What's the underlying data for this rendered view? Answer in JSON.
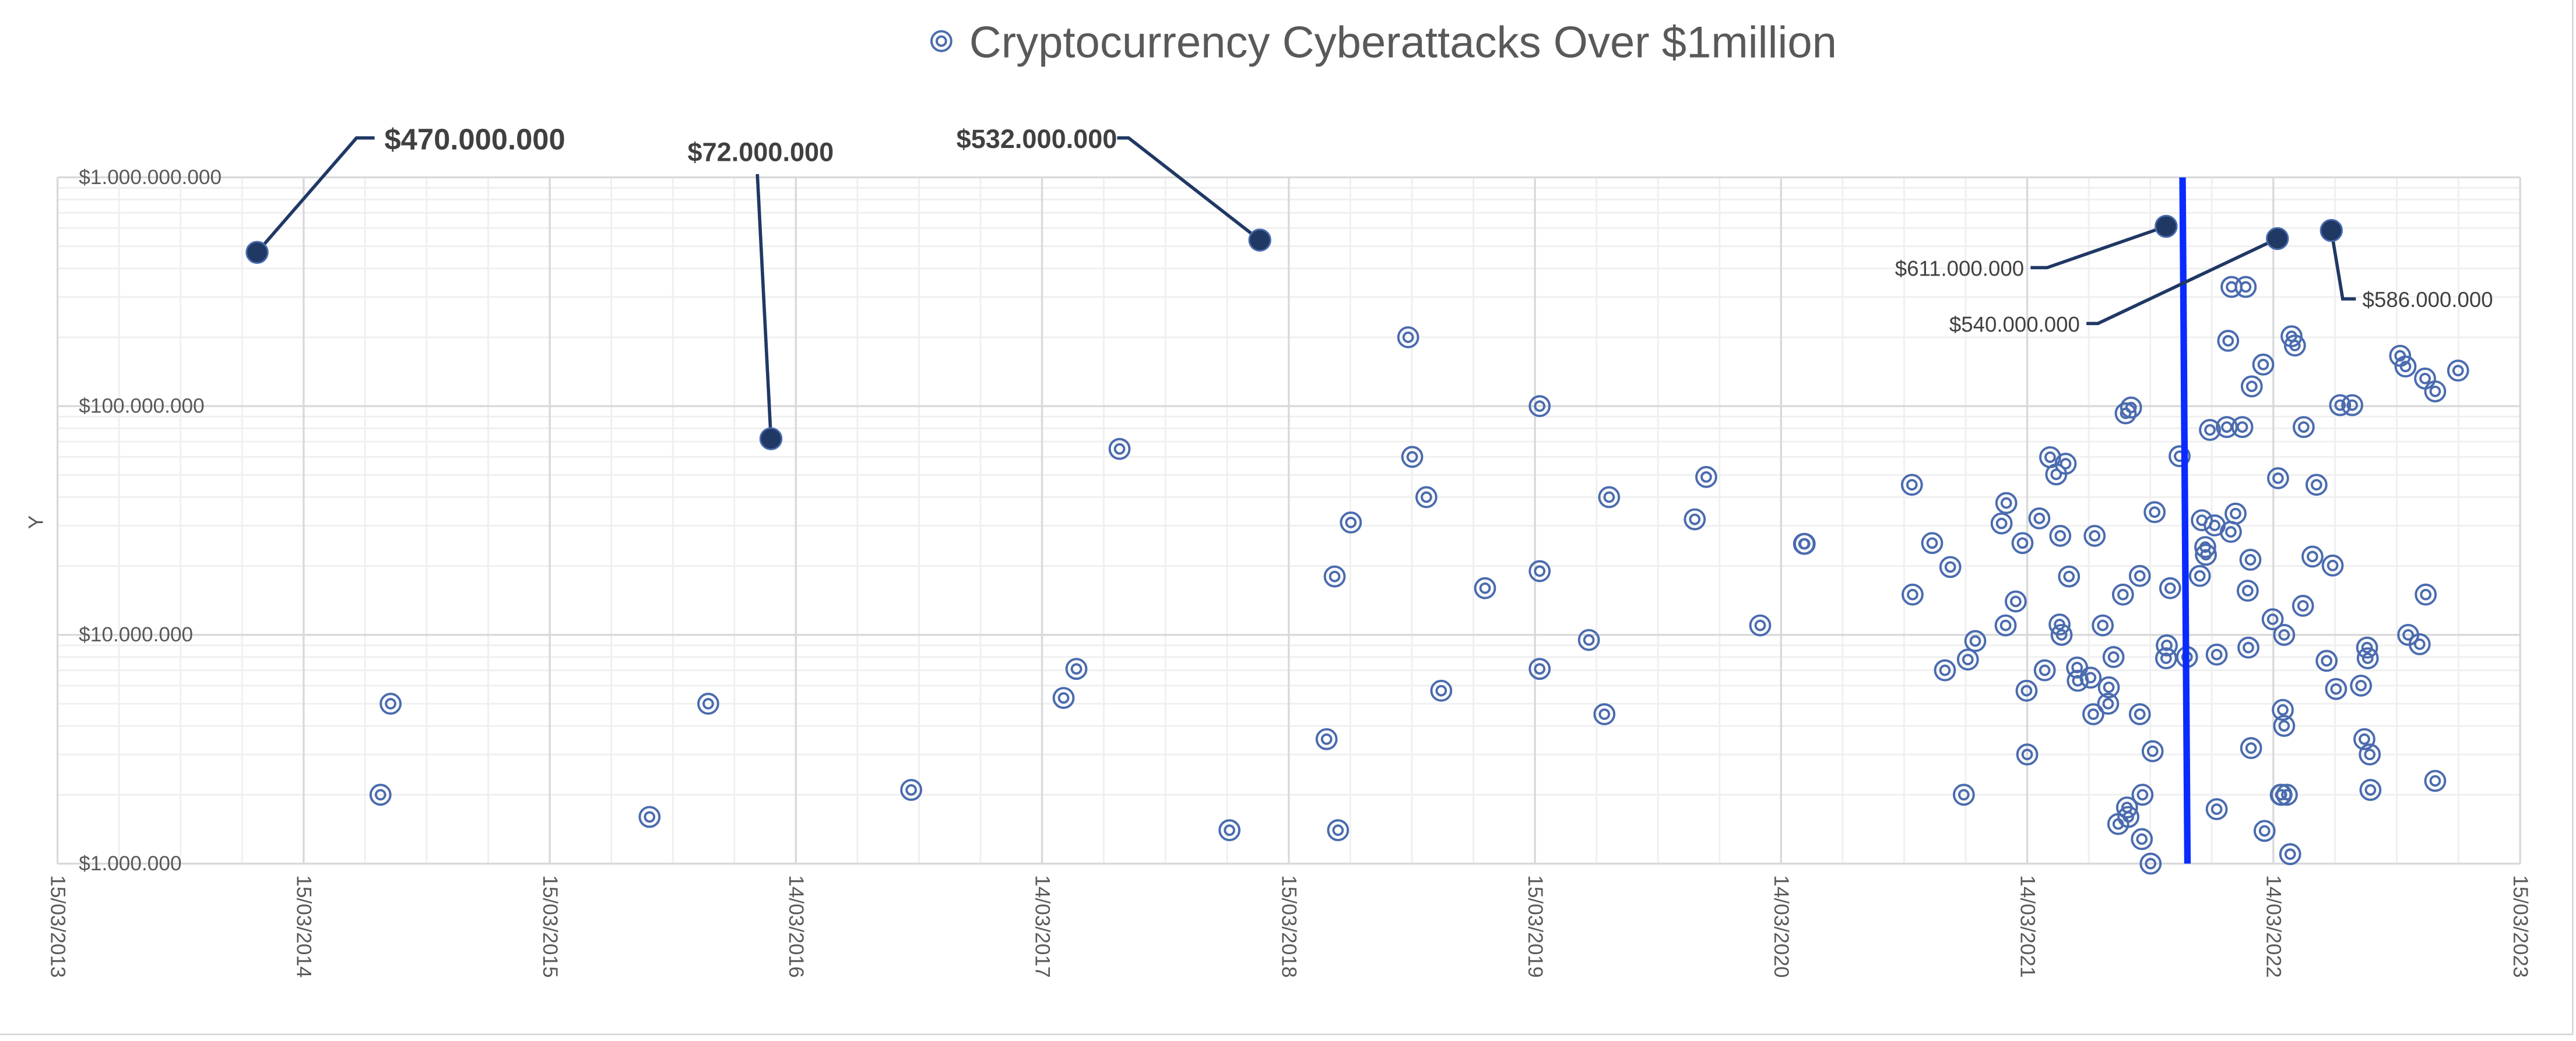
{
  "chart_data": {
    "type": "scatter",
    "title": "Cryptocurrency Cyberattacks Over $1million",
    "xlabel": "",
    "ylabel": "Y",
    "y_scale": "log",
    "ylim": [
      1000000,
      1000000000
    ],
    "xlim": [
      "2013-03-15",
      "2023-03-15"
    ],
    "grid": true,
    "legend": "top",
    "x_tick_labels": [
      "15/03/2013",
      "15/03/2014",
      "15/03/2015",
      "14/03/2016",
      "14/03/2017",
      "15/03/2018",
      "15/03/2019",
      "14/03/2020",
      "14/03/2021",
      "14/03/2022",
      "15/03/2023"
    ],
    "x_tick_dates": [
      "2013-03-15",
      "2014-03-15",
      "2015-03-15",
      "2016-03-14",
      "2017-03-14",
      "2018-03-15",
      "2019-03-15",
      "2020-03-14",
      "2021-03-14",
      "2022-03-14",
      "2023-03-15"
    ],
    "y_tick_labels": [
      "$1.000.000",
      "$10.000.000",
      "$100.000.000",
      "$1.000.000.000"
    ],
    "y_tick_values": [
      1000000,
      10000000,
      100000000,
      1000000000
    ],
    "marker_color": "#4A6BAE",
    "highlight_color": "#203864",
    "vertical_marker": {
      "date": "2021-11-03",
      "color": "#0A2BFF"
    },
    "annotations": [
      {
        "label": "$470.000.000",
        "date": "2014-01-05",
        "value": 470000000
      },
      {
        "label": "$72.000.000",
        "date": "2016-02-06",
        "value": 72000000
      },
      {
        "label": "$532.000.000",
        "date": "2018-01-31",
        "value": 532000000
      },
      {
        "label": "$611.000.000",
        "date": "2021-10-06",
        "value": 611000000
      },
      {
        "label": "$540.000.000",
        "date": "2022-03-20",
        "value": 540000000
      },
      {
        "label": "$586.000.000",
        "date": "2022-06-08",
        "value": 586000000
      }
    ],
    "points": [
      [
        "2014-07-22",
        5000000
      ],
      [
        "2014-07-07",
        2000000
      ],
      [
        "2015-08-10",
        1600000
      ],
      [
        "2015-11-05",
        5000000
      ],
      [
        "2016-09-01",
        2100000
      ],
      [
        "2017-04-15",
        5300000
      ],
      [
        "2017-05-04",
        7100000
      ],
      [
        "2017-07-07",
        65000000
      ],
      [
        "2017-12-17",
        1400000
      ],
      [
        "2018-05-10",
        3500000
      ],
      [
        "2018-05-22",
        18000000
      ],
      [
        "2018-05-27",
        1400000
      ],
      [
        "2018-06-15",
        31000000
      ],
      [
        "2018-09-08",
        200000000
      ],
      [
        "2018-09-14",
        60000000
      ],
      [
        "2018-10-05",
        40000000
      ],
      [
        "2018-10-27",
        5700000
      ],
      [
        "2018-12-31",
        16000000
      ],
      [
        "2019-03-22",
        100000000
      ],
      [
        "2019-03-22",
        19000000
      ],
      [
        "2019-03-22",
        7100000
      ],
      [
        "2019-06-03",
        9500000
      ],
      [
        "2019-06-26",
        4500000
      ],
      [
        "2019-07-03",
        40000000
      ],
      [
        "2019-11-07",
        32000000
      ],
      [
        "2019-11-24",
        49000000
      ],
      [
        "2020-02-12",
        11000000
      ],
      [
        "2020-04-17",
        25000000
      ],
      [
        "2020-04-18",
        25000000
      ],
      [
        "2022-01-11",
        332000000
      ],
      [
        "2022-02-01",
        332000000
      ],
      [
        "2022-01-06",
        193000000
      ],
      [
        "2022-04-10",
        202000000
      ],
      [
        "2022-04-15",
        184000000
      ],
      [
        "2022-02-27",
        152000000
      ],
      [
        "2022-02-10",
        122000000
      ],
      [
        "2022-09-18",
        166000000
      ],
      [
        "2022-09-26",
        149000000
      ],
      [
        "2022-10-25",
        132000000
      ],
      [
        "2022-11-09",
        116000000
      ],
      [
        "2022-12-13",
        143000000
      ],
      [
        "2022-06-21",
        101000000
      ],
      [
        "2022-07-09",
        101000000
      ],
      [
        "2021-08-15",
        98600000
      ],
      [
        "2021-08-07",
        93000000
      ],
      [
        "2021-12-10",
        78700000
      ],
      [
        "2022-01-04",
        81000000
      ],
      [
        "2022-01-27",
        81000000
      ],
      [
        "2022-04-28",
        81000000
      ],
      [
        "2021-10-26",
        60400000
      ],
      [
        "2021-04-17",
        59800000
      ],
      [
        "2021-05-10",
        56000000
      ],
      [
        "2021-04-26",
        50300000
      ],
      [
        "2022-03-21",
        48400000
      ],
      [
        "2022-05-17",
        45300000
      ],
      [
        "2020-09-24",
        45300000
      ],
      [
        "2021-02-11",
        37700000
      ],
      [
        "2021-02-04",
        30700000
      ],
      [
        "2021-04-01",
        32300000
      ],
      [
        "2020-10-24",
        25200000
      ],
      [
        "2021-03-07",
        25200000
      ],
      [
        "2021-05-02",
        27100000
      ],
      [
        "2021-06-22",
        27100000
      ],
      [
        "2021-09-19",
        34400000
      ],
      [
        "2021-11-28",
        31700000
      ],
      [
        "2021-12-17",
        30100000
      ],
      [
        "2022-01-17",
        33900000
      ],
      [
        "2022-01-10",
        28200000
      ],
      [
        "2021-12-03",
        24200000
      ],
      [
        "2021-12-04",
        22400000
      ],
      [
        "2022-02-08",
        21300000
      ],
      [
        "2022-05-11",
        22000000
      ],
      [
        "2022-06-10",
        20100000
      ],
      [
        "2020-11-20",
        19800000
      ],
      [
        "2020-09-25",
        15000000
      ],
      [
        "2021-05-15",
        18000000
      ],
      [
        "2021-08-28",
        18100000
      ],
      [
        "2021-08-03",
        15000000
      ],
      [
        "2021-10-12",
        16000000
      ],
      [
        "2021-11-25",
        18100000
      ],
      [
        "2022-02-04",
        15600000
      ],
      [
        "2022-10-26",
        15000000
      ],
      [
        "2021-02-25",
        14000000
      ],
      [
        "2022-04-27",
        13400000
      ],
      [
        "2021-02-10",
        11000000
      ],
      [
        "2021-05-01",
        11100000
      ],
      [
        "2021-05-04",
        10000000
      ],
      [
        "2021-07-04",
        11000000
      ],
      [
        "2022-03-13",
        11700000
      ],
      [
        "2022-03-30",
        10000000
      ],
      [
        "2020-12-27",
        9400000
      ],
      [
        "2020-12-16",
        7800000
      ],
      [
        "2020-11-12",
        7000000
      ],
      [
        "2021-04-09",
        7000000
      ],
      [
        "2021-03-13",
        5700000
      ],
      [
        "2021-05-27",
        7200000
      ],
      [
        "2021-05-28",
        6300000
      ],
      [
        "2021-06-16",
        6500000
      ],
      [
        "2021-07-13",
        5900000
      ],
      [
        "2021-07-12",
        5000000
      ],
      [
        "2021-06-20",
        4500000
      ],
      [
        "2021-07-20",
        8000000
      ],
      [
        "2021-08-28",
        4500000
      ],
      [
        "2021-10-07",
        9000000
      ],
      [
        "2021-10-06",
        7900000
      ],
      [
        "2021-11-06",
        8000000
      ],
      [
        "2021-12-20",
        8200000
      ],
      [
        "2022-02-05",
        8800000
      ],
      [
        "2022-06-01",
        7700000
      ],
      [
        "2022-07-31",
        8800000
      ],
      [
        "2022-08-01",
        7900000
      ],
      [
        "2022-09-30",
        10000000
      ],
      [
        "2022-10-17",
        9100000
      ],
      [
        "2022-06-15",
        5800000
      ],
      [
        "2022-07-22",
        6000000
      ],
      [
        "2022-03-28",
        4700000
      ],
      [
        "2022-03-30",
        4000000
      ],
      [
        "2021-03-14",
        3000000
      ],
      [
        "2021-09-16",
        3100000
      ],
      [
        "2022-02-09",
        3200000
      ],
      [
        "2022-07-27",
        3500000
      ],
      [
        "2022-08-04",
        3000000
      ],
      [
        "2022-11-09",
        2300000
      ],
      [
        "2020-12-10",
        2000000
      ],
      [
        "2021-09-01",
        2000000
      ],
      [
        "2021-08-09",
        1760000
      ],
      [
        "2021-08-11",
        1600000
      ],
      [
        "2021-07-27",
        1490000
      ],
      [
        "2021-08-31",
        1280000
      ],
      [
        "2021-09-13",
        1000000
      ],
      [
        "2021-12-20",
        1730000
      ],
      [
        "2022-03-25",
        2000000
      ],
      [
        "2022-03-26",
        2000000
      ],
      [
        "2022-04-03",
        2000000
      ],
      [
        "2022-03-01",
        1390000
      ],
      [
        "2022-04-08",
        1100000
      ],
      [
        "2022-08-05",
        2100000
      ]
    ]
  }
}
